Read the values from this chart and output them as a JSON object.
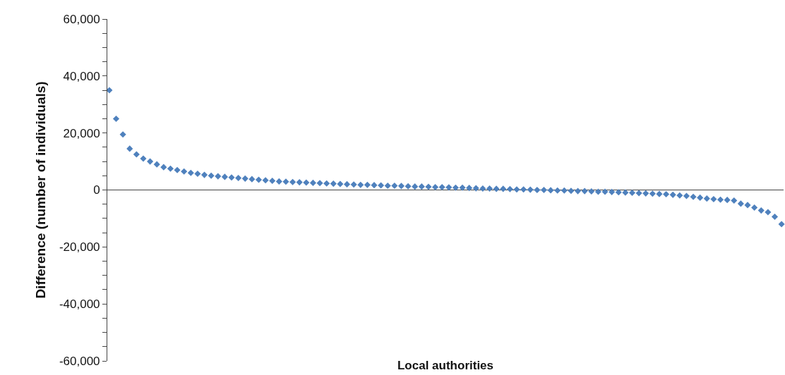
{
  "chart_data": {
    "type": "scatter",
    "xlabel": "Local authorities",
    "ylabel": "Difference (number of individuals)",
    "categories": [
      null,
      null,
      null,
      null,
      null,
      null,
      null,
      null,
      null,
      null,
      null,
      null,
      null,
      null,
      null,
      null,
      null,
      null,
      null,
      null,
      null,
      null,
      null,
      null,
      null,
      null,
      null,
      null,
      null,
      null,
      null,
      null,
      null,
      null,
      null,
      null,
      null,
      null,
      null,
      null,
      null,
      null,
      null,
      null,
      null,
      null,
      null,
      null,
      null,
      null,
      null,
      null,
      null,
      null,
      null,
      null,
      null,
      null,
      null,
      null,
      null,
      null,
      null,
      null,
      null,
      null,
      null,
      null,
      null,
      null,
      null,
      null,
      null,
      null,
      null,
      null,
      null,
      null,
      null,
      null,
      null,
      null,
      null,
      null,
      null,
      null,
      null,
      null,
      null,
      null,
      null,
      null,
      null,
      null,
      null,
      null,
      null,
      null,
      null,
      null
    ],
    "series": [
      {
        "color": "#4f81bd",
        "values": [
          35000,
          25000,
          19500,
          14500,
          12500,
          11000,
          10000,
          9000,
          8000,
          7500,
          7000,
          6500,
          6000,
          5700,
          5300,
          5000,
          4800,
          4600,
          4400,
          4200,
          4000,
          3800,
          3600,
          3400,
          3200,
          3000,
          2900,
          2800,
          2700,
          2600,
          2500,
          2400,
          2300,
          2200,
          2100,
          2000,
          1900,
          1800,
          1800,
          1700,
          1600,
          1500,
          1500,
          1400,
          1300,
          1200,
          1200,
          1100,
          1000,
          1000,
          900,
          800,
          800,
          700,
          600,
          500,
          500,
          400,
          400,
          300,
          200,
          200,
          100,
          0,
          0,
          -100,
          -200,
          -200,
          -300,
          -400,
          -400,
          -500,
          -600,
          -600,
          -700,
          -800,
          -900,
          -1000,
          -1100,
          -1200,
          -1300,
          -1400,
          -1500,
          -1700,
          -1900,
          -2100,
          -2400,
          -2700,
          -3000,
          -3200,
          -3400,
          -3500,
          -3700,
          -4800,
          -5300,
          -6200,
          -7200,
          -7800,
          -9400,
          -12000
        ]
      }
    ],
    "ref_lines": [
      {
        "axis": "y",
        "value": 0,
        "color": "#444444"
      }
    ],
    "ylim": [
      -60000,
      60000
    ],
    "yticks": [
      {
        "value": -60000,
        "label": "-60,000"
      },
      {
        "value": -55000,
        "label": null
      },
      {
        "value": -50000,
        "label": null
      },
      {
        "value": -45000,
        "label": null
      },
      {
        "value": -40000,
        "label": "-40,000"
      },
      {
        "value": -35000,
        "label": null
      },
      {
        "value": -30000,
        "label": null
      },
      {
        "value": -25000,
        "label": null
      },
      {
        "value": -20000,
        "label": "-20,000"
      },
      {
        "value": -15000,
        "label": null
      },
      {
        "value": -10000,
        "label": null
      },
      {
        "value": -5000,
        "label": null
      },
      {
        "value": 0,
        "label": "0"
      },
      {
        "value": 5000,
        "label": null
      },
      {
        "value": 10000,
        "label": null
      },
      {
        "value": 15000,
        "label": null
      },
      {
        "value": 20000,
        "label": "20,000"
      },
      {
        "value": 25000,
        "label": null
      },
      {
        "value": 30000,
        "label": null
      },
      {
        "value": 35000,
        "label": null
      },
      {
        "value": 40000,
        "label": "40,000"
      },
      {
        "value": 45000,
        "label": null
      },
      {
        "value": 50000,
        "label": null
      },
      {
        "value": 55000,
        "label": null
      },
      {
        "value": 60000,
        "label": "60,000"
      }
    ],
    "grid": false,
    "legend": false,
    "marker": "diamond",
    "tick_labels": "y"
  }
}
